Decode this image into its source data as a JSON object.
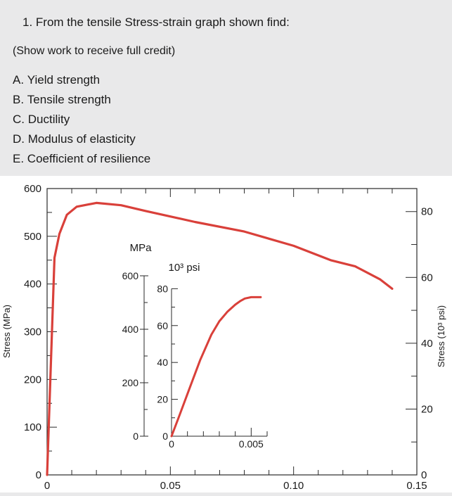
{
  "question": {
    "title": "1. From the tensile Stress-strain graph shown find:",
    "note": "(Show work to receive full credit)",
    "items": [
      {
        "letter": "A.",
        "text": "Yield strength"
      },
      {
        "letter": "B.",
        "text": "Tensile strength"
      },
      {
        "letter": "C.",
        "text": "Ductility"
      },
      {
        "letter": "D.",
        "text": "Modulus of elasticity"
      },
      {
        "letter": "E.",
        "text": "Coefficient of resilience"
      }
    ]
  },
  "chart_data": [
    {
      "type": "line",
      "role": "main",
      "xlabel": "",
      "ylabel": "Stress (MPa)",
      "y2label": "Stress (10³ psi)",
      "xlim": [
        0,
        0.15
      ],
      "ylim": [
        0,
        600
      ],
      "y2lim": [
        0,
        87
      ],
      "x_ticks": [
        0,
        0.05,
        0.1,
        0.15
      ],
      "x_tick_labels": [
        "0",
        "0.05",
        "0.10",
        "0.15"
      ],
      "y_ticks": [
        0,
        100,
        200,
        300,
        400,
        500,
        600
      ],
      "y_tick_labels": [
        "0",
        "100",
        "200",
        "300",
        "400",
        "500",
        "600"
      ],
      "y2_ticks": [
        0,
        20,
        40,
        60,
        80
      ],
      "y2_tick_labels": [
        "0",
        "20",
        "40",
        "60",
        "80"
      ],
      "line_color": "#d9403a",
      "series": [
        {
          "x": [
            0,
            0.003,
            0.005,
            0.008,
            0.012,
            0.02,
            0.03,
            0.04,
            0.06,
            0.08,
            0.1,
            0.115,
            0.125,
            0.135,
            0.14
          ],
          "y": [
            0,
            455,
            505,
            545,
            562,
            570,
            565,
            553,
            530,
            510,
            480,
            450,
            437,
            410,
            390
          ]
        }
      ]
    },
    {
      "type": "line",
      "role": "inset",
      "unit_left": "MPa",
      "unit_right": "10³ psi",
      "xlim": [
        0,
        0.006
      ],
      "ylim": [
        0,
        600
      ],
      "y2lim": [
        0,
        87
      ],
      "x_tick_labels": [
        "0",
        "0.005"
      ],
      "y_tick_labels": [
        "0",
        "200",
        "400",
        "600"
      ],
      "y2_tick_labels": [
        "0",
        "20",
        "40",
        "60",
        "80"
      ],
      "line_color": "#d9403a",
      "series": [
        {
          "x": [
            0,
            0.0005,
            0.0012,
            0.0018,
            0.0025,
            0.003,
            0.0035,
            0.004,
            0.0043,
            0.0046,
            0.005,
            0.0056
          ],
          "y": [
            0,
            78,
            190,
            285,
            380,
            430,
            465,
            492,
            505,
            515,
            520,
            520
          ]
        }
      ]
    }
  ]
}
